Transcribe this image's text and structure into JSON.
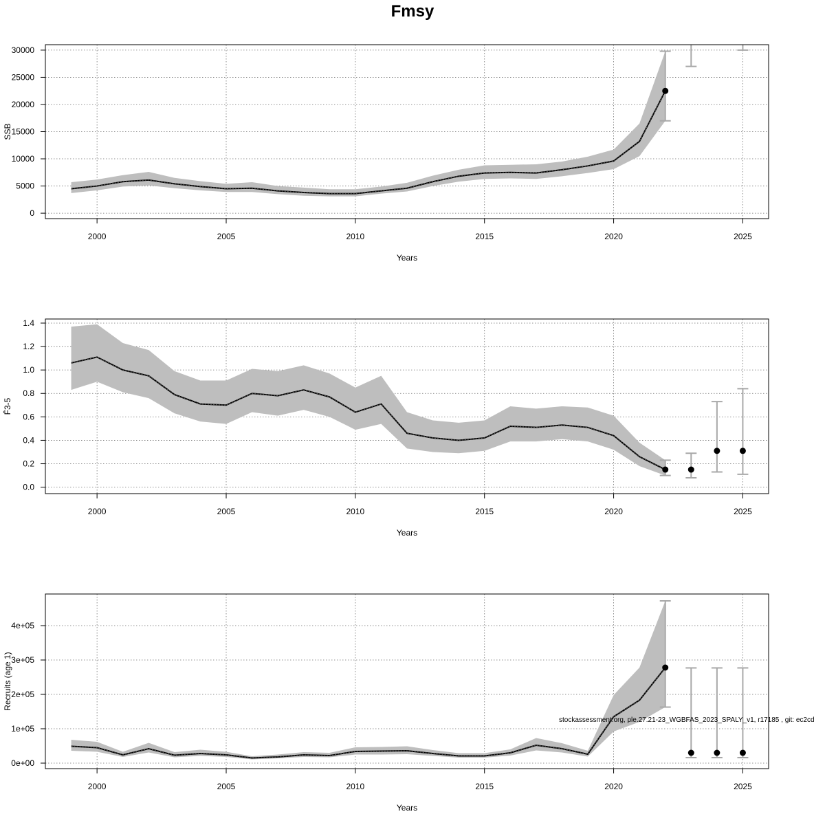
{
  "title": "Fmsy",
  "footnote": "stockassessment.org, ple.27.21-23_WGBFAS_2023_SPALY_v1, r17185 , git: ec2cd",
  "colors": {
    "band": "#bebebe",
    "line": "#000000",
    "errbar": "#a8a8a8",
    "grid": "#6e6e6e"
  },
  "chart_data": [
    {
      "type": "line",
      "name": "ssb",
      "ylabel": "SSB",
      "xlabel": "Years",
      "xlim": [
        1998,
        2026
      ],
      "ylim": [
        -1000,
        31000
      ],
      "xticks": [
        2000,
        2005,
        2010,
        2015,
        2020,
        2025
      ],
      "yticks": [
        0,
        5000,
        10000,
        15000,
        20000,
        25000,
        30000
      ],
      "ytick_labels": [
        "0",
        "5000",
        "10000",
        "15000",
        "20000",
        "25000",
        "30000"
      ],
      "grid": true,
      "x": [
        1999,
        2000,
        2001,
        2002,
        2003,
        2004,
        2005,
        2006,
        2007,
        2008,
        2009,
        2010,
        2011,
        2012,
        2013,
        2014,
        2015,
        2016,
        2017,
        2018,
        2019,
        2020,
        2021,
        2022
      ],
      "estimate": [
        4500,
        5000,
        5800,
        6100,
        5400,
        4900,
        4500,
        4600,
        4100,
        3800,
        3600,
        3600,
        4100,
        4600,
        5800,
        6800,
        7400,
        7500,
        7400,
        8000,
        8700,
        9600,
        13200,
        22500
      ],
      "lower": [
        3700,
        4200,
        4900,
        5100,
        4600,
        4200,
        3900,
        3900,
        3500,
        3200,
        3100,
        3100,
        3600,
        4000,
        5000,
        5800,
        6300,
        6400,
        6300,
        6800,
        7400,
        8100,
        10500,
        17000
      ],
      "upper": [
        5700,
        6200,
        7000,
        7600,
        6500,
        5900,
        5400,
        5700,
        5000,
        4700,
        4400,
        4400,
        4900,
        5600,
        6900,
        8000,
        8800,
        8900,
        9000,
        9500,
        10400,
        11700,
        16500,
        29800
      ],
      "endpoint": {
        "x": 2022,
        "y": 22500
      },
      "forecast_errorbars": [
        {
          "x": 2023,
          "lower": 27000,
          "upper": 33000
        },
        {
          "x": 2025,
          "lower": 30000,
          "upper": 33000
        }
      ],
      "forecast_points": []
    },
    {
      "type": "line",
      "name": "fbar",
      "ylabel": "F̄3-5",
      "xlabel": "Years",
      "xlim": [
        1998,
        2026
      ],
      "ylim": [
        -0.055,
        1.435
      ],
      "xticks": [
        2000,
        2005,
        2010,
        2015,
        2020,
        2025
      ],
      "yticks": [
        0,
        0.2,
        0.4,
        0.6,
        0.8,
        1.0,
        1.2,
        1.4
      ],
      "ytick_labels": [
        "0.0",
        "0.2",
        "0.4",
        "0.6",
        "0.8",
        "1.0",
        "1.2",
        "1.4"
      ],
      "grid": true,
      "x": [
        1999,
        2000,
        2001,
        2002,
        2003,
        2004,
        2005,
        2006,
        2007,
        2008,
        2009,
        2010,
        2011,
        2012,
        2013,
        2014,
        2015,
        2016,
        2017,
        2018,
        2019,
        2020,
        2021,
        2022
      ],
      "estimate": [
        1.06,
        1.11,
        1.0,
        0.95,
        0.79,
        0.71,
        0.7,
        0.8,
        0.78,
        0.83,
        0.77,
        0.64,
        0.71,
        0.46,
        0.42,
        0.4,
        0.42,
        0.52,
        0.51,
        0.53,
        0.51,
        0.44,
        0.26,
        0.15
      ],
      "lower": [
        0.83,
        0.9,
        0.81,
        0.76,
        0.63,
        0.56,
        0.54,
        0.64,
        0.61,
        0.66,
        0.6,
        0.49,
        0.54,
        0.33,
        0.3,
        0.29,
        0.31,
        0.39,
        0.39,
        0.41,
        0.39,
        0.32,
        0.18,
        0.1
      ],
      "upper": [
        1.37,
        1.39,
        1.23,
        1.17,
        0.99,
        0.91,
        0.91,
        1.01,
        0.99,
        1.04,
        0.97,
        0.85,
        0.95,
        0.64,
        0.57,
        0.55,
        0.57,
        0.69,
        0.67,
        0.69,
        0.68,
        0.61,
        0.38,
        0.23
      ],
      "endpoint": {
        "x": 2022,
        "y": 0.15
      },
      "forecast_errorbars": [
        {
          "x": 2023,
          "lower": 0.08,
          "upper": 0.29
        },
        {
          "x": 2024,
          "lower": 0.13,
          "upper": 0.73
        },
        {
          "x": 2025,
          "lower": 0.11,
          "upper": 0.84
        }
      ],
      "forecast_points": [
        {
          "x": 2023,
          "y": 0.15
        },
        {
          "x": 2024,
          "y": 0.31
        },
        {
          "x": 2025,
          "y": 0.31
        }
      ]
    },
    {
      "type": "line",
      "name": "recruits",
      "ylabel": "Recruits (age 1)",
      "xlabel": "Years",
      "xlim": [
        1998,
        2026
      ],
      "ylim": [
        -16000,
        492000
      ],
      "xticks": [
        2000,
        2005,
        2010,
        2015,
        2020,
        2025
      ],
      "yticks": [
        0,
        100000,
        200000,
        300000,
        400000
      ],
      "ytick_labels": [
        "0e+00",
        "1e+05",
        "2e+05",
        "3e+05",
        "4e+05"
      ],
      "grid": true,
      "x": [
        1999,
        2000,
        2001,
        2002,
        2003,
        2004,
        2005,
        2006,
        2007,
        2008,
        2009,
        2010,
        2011,
        2012,
        2013,
        2014,
        2015,
        2016,
        2017,
        2018,
        2019,
        2020,
        2021,
        2022
      ],
      "estimate": [
        49000,
        45000,
        24000,
        42000,
        23000,
        28000,
        24000,
        15000,
        18000,
        24000,
        22000,
        34000,
        35000,
        36000,
        28000,
        21000,
        21000,
        30000,
        52000,
        42000,
        26000,
        135000,
        183000,
        278000
      ],
      "lower": [
        36000,
        33000,
        18000,
        31000,
        17000,
        21000,
        18000,
        11000,
        14000,
        18000,
        17000,
        25000,
        25000,
        26000,
        21000,
        16000,
        16000,
        22000,
        37000,
        31000,
        19000,
        92000,
        120000,
        163000
      ],
      "upper": [
        68000,
        62000,
        33000,
        59000,
        32000,
        39000,
        33000,
        20000,
        25000,
        32000,
        30000,
        46000,
        47000,
        49000,
        38000,
        29000,
        29000,
        40000,
        73000,
        58000,
        36000,
        198000,
        278000,
        472000
      ],
      "endpoint": {
        "x": 2022,
        "y": 278000
      },
      "forecast_errorbars": [
        {
          "x": 2023,
          "lower": 16000,
          "upper": 277000
        },
        {
          "x": 2024,
          "lower": 16000,
          "upper": 277000
        },
        {
          "x": 2025,
          "lower": 16000,
          "upper": 277000
        }
      ],
      "forecast_points": [
        {
          "x": 2023,
          "y": 30000
        },
        {
          "x": 2024,
          "y": 30000
        },
        {
          "x": 2025,
          "y": 30000
        }
      ]
    }
  ]
}
